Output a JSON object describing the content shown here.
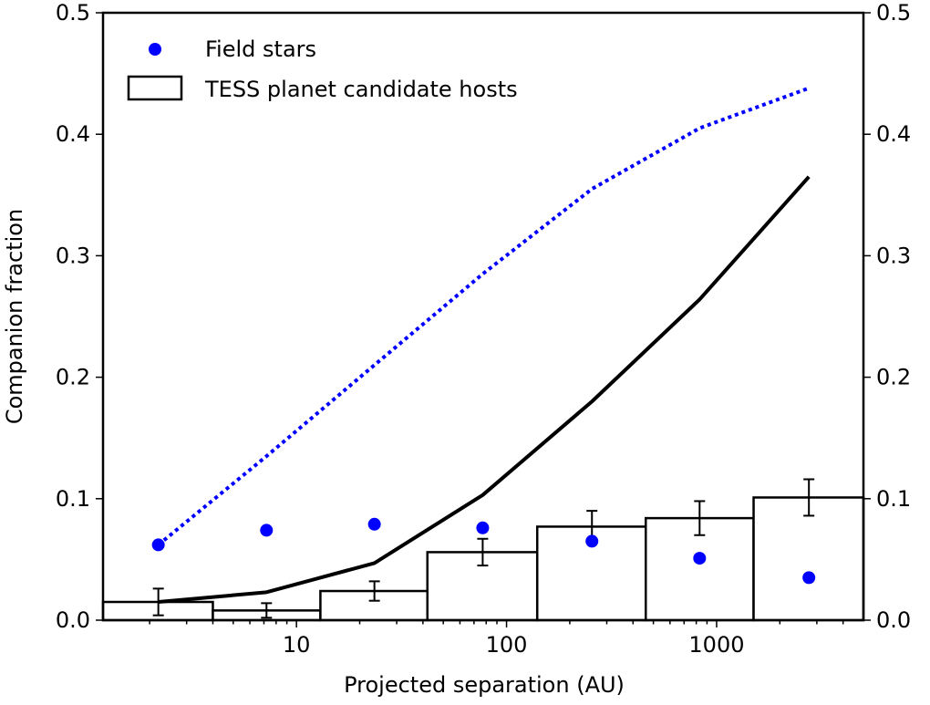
{
  "chart_data": {
    "type": "bar",
    "xlabel": "Projected separation (AU)",
    "ylabel": "Companion fraction",
    "xscale": "log",
    "xlim": [
      1.2,
      5000
    ],
    "ylim": [
      0,
      0.5
    ],
    "x_tick_labels": [
      {
        "value": 10,
        "label": "10"
      },
      {
        "value": 100,
        "label": "100"
      },
      {
        "value": 1000,
        "label": "1000"
      }
    ],
    "y_tick_labels": [
      {
        "value": 0.0,
        "label": "0.0"
      },
      {
        "value": 0.1,
        "label": "0.1"
      },
      {
        "value": 0.2,
        "label": "0.2"
      },
      {
        "value": 0.3,
        "label": "0.3"
      },
      {
        "value": 0.4,
        "label": "0.4"
      },
      {
        "value": 0.5,
        "label": "0.5"
      }
    ],
    "legend": {
      "position": "top-left",
      "field_label": "Field stars",
      "tess_label": "TESS planet candidate hosts"
    },
    "histogram": {
      "name": "TESS planet candidate hosts",
      "bins": [
        {
          "left": 1.2,
          "right": 4,
          "value": 0.015,
          "err": 0.011,
          "center": 2.2
        },
        {
          "left": 4,
          "right": 13,
          "value": 0.008,
          "err": 0.006,
          "center": 7.2
        },
        {
          "left": 13,
          "right": 42,
          "value": 0.024,
          "err": 0.008,
          "center": 23.5
        },
        {
          "left": 42,
          "right": 140,
          "value": 0.056,
          "err": 0.011,
          "center": 77
        },
        {
          "left": 140,
          "right": 460,
          "value": 0.077,
          "err": 0.013,
          "center": 255
        },
        {
          "left": 460,
          "right": 1500,
          "value": 0.084,
          "err": 0.014,
          "center": 830
        },
        {
          "left": 1500,
          "right": 5000,
          "value": 0.101,
          "err": 0.015,
          "center": 2750
        }
      ]
    },
    "field_points": {
      "name": "Field stars",
      "color": "#0000ff",
      "x": [
        2.2,
        7.2,
        23.5,
        77,
        255,
        830,
        2750
      ],
      "y": [
        0.062,
        0.074,
        0.079,
        0.076,
        0.065,
        0.051,
        0.035
      ]
    },
    "solid_line": {
      "color": "#000000",
      "x": [
        2.2,
        7.2,
        23.5,
        77,
        255,
        830,
        2750
      ],
      "y": [
        0.015,
        0.023,
        0.047,
        0.103,
        0.18,
        0.264,
        0.365
      ]
    },
    "dotted_line": {
      "color": "#0000ff",
      "x": [
        2.2,
        7.2,
        23.5,
        77,
        255,
        830,
        2750
      ],
      "y": [
        0.062,
        0.135,
        0.21,
        0.285,
        0.355,
        0.405,
        0.438
      ]
    }
  }
}
